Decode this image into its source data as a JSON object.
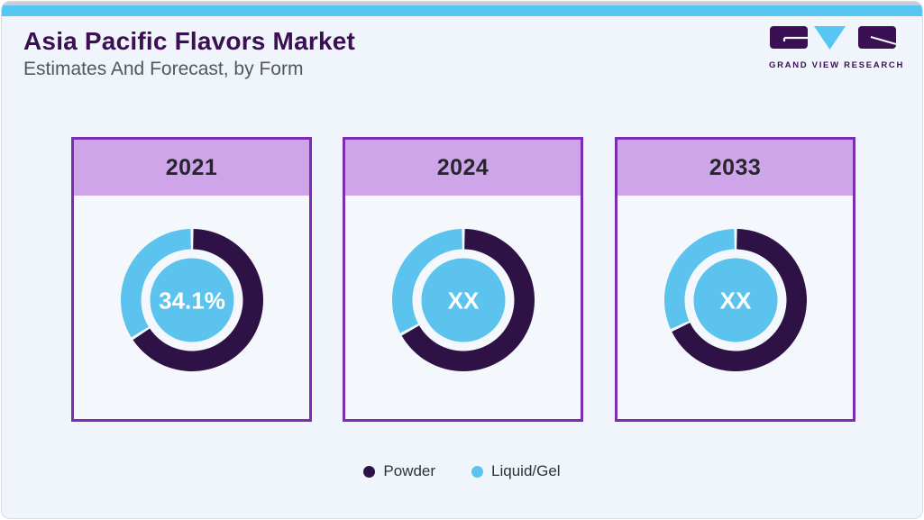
{
  "page": {
    "title": "Asia Pacific Flavors Market",
    "subtitle": "Estimates And Forecast, by Form"
  },
  "logo": {
    "name": "grand-view-research-logo",
    "text": "GRAND VIEW RESEARCH"
  },
  "colors": {
    "accent_top_bar": "#58c6f2",
    "title_purple": "#3a1053",
    "card_border": "#7c2db2",
    "card_header_bg": "#cfa5ea",
    "powder": "#2e1245",
    "liquid_gel": "#5bc3ee",
    "donut_center_bg": "#5bc3ee",
    "donut_center_text": "#ffffff"
  },
  "legend": {
    "items": [
      {
        "label": "Powder",
        "color": "#2e1245"
      },
      {
        "label": "Liquid/Gel",
        "color": "#5bc3ee"
      }
    ]
  },
  "chart_data": [
    {
      "type": "pie",
      "subtype": "donut",
      "year": "2021",
      "center_label": "34.1%",
      "series": [
        {
          "name": "Powder",
          "pct": 65.9,
          "label": "65.9%",
          "color": "#2e1245"
        },
        {
          "name": "Liquid/Gel",
          "pct": 34.1,
          "label": "34.1%",
          "color": "#5bc3ee"
        }
      ],
      "notes": "Liquid/Gel share labeled 34.1% in donut center"
    },
    {
      "type": "pie",
      "subtype": "donut",
      "year": "2024",
      "center_label": "XX",
      "series": [
        {
          "name": "Powder",
          "pct": 67,
          "label": "XX",
          "color": "#2e1245"
        },
        {
          "name": "Liquid/Gel",
          "pct": 33,
          "label": "XX",
          "color": "#5bc3ee"
        }
      ],
      "notes": "Values masked as XX; visual split approx 67/33"
    },
    {
      "type": "pie",
      "subtype": "donut",
      "year": "2033",
      "center_label": "XX",
      "series": [
        {
          "name": "Powder",
          "pct": 68,
          "label": "XX",
          "color": "#2e1245"
        },
        {
          "name": "Liquid/Gel",
          "pct": 32,
          "label": "XX",
          "color": "#5bc3ee"
        }
      ],
      "notes": "Values masked as XX; visual split approx 68/32"
    }
  ]
}
